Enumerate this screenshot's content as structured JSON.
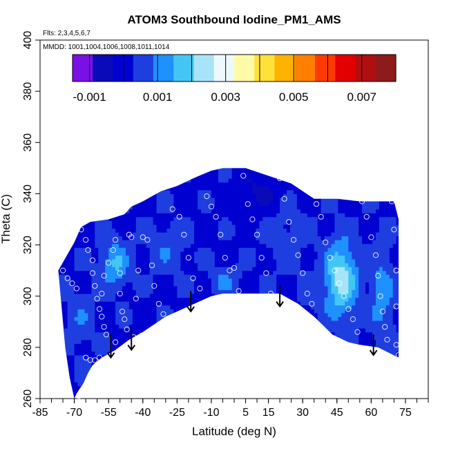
{
  "chart_data": {
    "type": "heatmap",
    "title": "ATOM3 Southbound Iodine_PM1_AMS",
    "flights_note": "Flts: 2,3,4,5,6,7",
    "dates_note": "MMDD: 1001,1004,1006,1008,1011,1014",
    "xlabel": "Latitude (deg N)",
    "ylabel": "Theta (C)",
    "xlim": [
      -85,
      85
    ],
    "ylim": [
      260,
      400
    ],
    "x_tick_labels": [
      "-85",
      "-70",
      "-55",
      "-40",
      "-25",
      "-10",
      "5",
      "15",
      "30",
      "45",
      "60",
      "75"
    ],
    "x_tick_values": [
      -85,
      -70,
      -55,
      -40,
      -25,
      -10,
      5,
      15,
      30,
      45,
      60,
      75
    ],
    "x_minor_step": 5,
    "y_ticks": [
      260,
      280,
      300,
      320,
      340,
      360,
      380,
      400
    ],
    "y_tick_labels": [
      "260",
      "280",
      "300",
      "320",
      "340",
      "360",
      "380",
      "400"
    ],
    "colorbar": {
      "range": [
        -0.0015,
        0.008
      ],
      "bounds": [
        -0.0015,
        -0.001,
        0.0,
        0.001,
        0.002,
        0.003,
        0.004,
        0.005,
        0.006,
        0.007,
        0.008
      ],
      "tick_labels": [
        "-0.001",
        "0.001",
        "0.003",
        "0.005",
        "0.007"
      ],
      "tick_values": [
        -0.001,
        0.001,
        0.003,
        0.005,
        0.007
      ],
      "colors": [
        "#7a10e6",
        "#0a0ab8",
        "#0000d0",
        "#1f3ee0",
        "#1e90ff",
        "#44c6f4",
        "#a8e4f8",
        "#eef8ff",
        "#fffaa8",
        "#ffe13a",
        "#ffb300",
        "#ff7f00",
        "#ff3a00",
        "#e30000",
        "#b00f0f",
        "#8e1b1b"
      ]
    },
    "field": {
      "boundary": [
        [
          -77,
          310
        ],
        [
          -70,
          321
        ],
        [
          -67,
          327
        ],
        [
          -63,
          329
        ],
        [
          -55,
          330
        ],
        [
          -48,
          332
        ],
        [
          -45,
          335
        ],
        [
          -40,
          337
        ],
        [
          -32,
          341
        ],
        [
          -25,
          343
        ],
        [
          -18,
          346
        ],
        [
          -10,
          349
        ],
        [
          -5,
          350
        ],
        [
          5,
          350
        ],
        [
          15,
          347
        ],
        [
          25,
          344
        ],
        [
          30,
          341
        ],
        [
          35,
          338
        ],
        [
          45,
          338
        ],
        [
          55,
          337
        ],
        [
          65,
          337
        ],
        [
          70,
          337
        ],
        [
          72,
          330
        ],
        [
          72,
          276
        ],
        [
          63,
          280
        ],
        [
          55,
          281
        ],
        [
          50,
          282
        ],
        [
          43,
          285
        ],
        [
          35,
          292
        ],
        [
          28,
          297
        ],
        [
          20,
          301
        ],
        [
          15,
          301
        ],
        [
          5,
          301
        ],
        [
          -5,
          301
        ],
        [
          -10,
          300
        ],
        [
          -20,
          296
        ],
        [
          -30,
          292
        ],
        [
          -40,
          286
        ],
        [
          -46,
          283
        ],
        [
          -52,
          279
        ],
        [
          -58,
          276
        ],
        [
          -62,
          273
        ],
        [
          -64,
          270
        ],
        [
          -66,
          266
        ],
        [
          -69,
          262
        ],
        [
          -70,
          260
        ],
        [
          -72,
          268
        ],
        [
          -74,
          280
        ],
        [
          -75,
          290
        ],
        [
          -76,
          300
        ]
      ],
      "hotspots": [
        {
          "lat": 46,
          "theta": 306,
          "value": 0.0024,
          "spread_lat": 7,
          "spread_theta": 14
        },
        {
          "lat": -53,
          "theta": 312,
          "value": 0.0015,
          "spread_lat": 6,
          "spread_theta": 9
        },
        {
          "lat": -30,
          "theta": 318,
          "value": 0.0008,
          "spread_lat": 8,
          "spread_theta": 9
        },
        {
          "lat": -5,
          "theta": 305,
          "value": 0.001,
          "spread_lat": 6,
          "spread_theta": 5
        },
        {
          "lat": 22,
          "theta": 322,
          "value": 0.0006,
          "spread_lat": 9,
          "spread_theta": 12
        },
        {
          "lat": 64,
          "theta": 300,
          "value": 0.0012,
          "spread_lat": 5,
          "spread_theta": 18
        },
        {
          "lat": -68,
          "theta": 290,
          "value": 0.0008,
          "spread_lat": 5,
          "spread_theta": 12
        },
        {
          "lat": 10,
          "theta": 340,
          "value": -0.0004,
          "spread_lat": 10,
          "spread_theta": 8
        },
        {
          "lat": 33,
          "theta": 300,
          "value": 0.0006,
          "spread_lat": 5,
          "spread_theta": 6
        }
      ],
      "background_value": 0.0002
    },
    "samples": [
      [
        -75,
        310
      ],
      [
        -73,
        307
      ],
      [
        -71,
        305
      ],
      [
        -69,
        303
      ],
      [
        -67,
        326
      ],
      [
        -65,
        322
      ],
      [
        -64,
        318
      ],
      [
        -62,
        314
      ],
      [
        -62,
        309
      ],
      [
        -61,
        304
      ],
      [
        -60,
        299
      ],
      [
        -59,
        295
      ],
      [
        -58,
        292
      ],
      [
        -57,
        288
      ],
      [
        -56,
        285
      ],
      [
        -65,
        276
      ],
      [
        -63,
        275
      ],
      [
        -61,
        275
      ],
      [
        -58,
        301
      ],
      [
        -57,
        308
      ],
      [
        -55,
        313
      ],
      [
        -53,
        318
      ],
      [
        -52,
        322
      ],
      [
        -50,
        309
      ],
      [
        -50,
        301
      ],
      [
        -49,
        294
      ],
      [
        -48,
        291
      ],
      [
        -47,
        287
      ],
      [
        -46,
        324
      ],
      [
        -45,
        323
      ],
      [
        -43,
        299
      ],
      [
        -42,
        310
      ],
      [
        -40,
        323
      ],
      [
        -38,
        322
      ],
      [
        -36,
        312
      ],
      [
        -35,
        304
      ],
      [
        -33,
        297
      ],
      [
        -31,
        293
      ],
      [
        -27,
        334
      ],
      [
        -24,
        331
      ],
      [
        -22,
        324
      ],
      [
        -20,
        315
      ],
      [
        -18,
        307
      ],
      [
        -15,
        303
      ],
      [
        -12,
        339
      ],
      [
        -10,
        335
      ],
      [
        -8,
        331
      ],
      [
        -6,
        324
      ],
      [
        -4,
        315
      ],
      [
        -2,
        310
      ],
      [
        0,
        311
      ],
      [
        2,
        302
      ],
      [
        4,
        347
      ],
      [
        6,
        336
      ],
      [
        8,
        330
      ],
      [
        10,
        324
      ],
      [
        12,
        315
      ],
      [
        14,
        309
      ],
      [
        16,
        301
      ],
      [
        18,
        296
      ],
      [
        20,
        346
      ],
      [
        22,
        338
      ],
      [
        24,
        329
      ],
      [
        26,
        322
      ],
      [
        28,
        316
      ],
      [
        30,
        309
      ],
      [
        32,
        301
      ],
      [
        34,
        297
      ],
      [
        36,
        336
      ],
      [
        38,
        331
      ],
      [
        40,
        321
      ],
      [
        42,
        315
      ],
      [
        44,
        310
      ],
      [
        46,
        305
      ],
      [
        48,
        300
      ],
      [
        50,
        295
      ],
      [
        52,
        291
      ],
      [
        54,
        286
      ],
      [
        56,
        337
      ],
      [
        58,
        331
      ],
      [
        60,
        323
      ],
      [
        62,
        316
      ],
      [
        63,
        308
      ],
      [
        64,
        300
      ],
      [
        65,
        294
      ],
      [
        66,
        288
      ],
      [
        67,
        283
      ],
      [
        69,
        337
      ],
      [
        70,
        326
      ],
      [
        71,
        310
      ],
      [
        71,
        296
      ],
      [
        71,
        281
      ],
      [
        72,
        277
      ],
      [
        -44,
        284
      ],
      [
        -47,
        278
      ],
      [
        -52,
        282
      ],
      [
        -59,
        276
      ],
      [
        -64,
        267
      ],
      [
        -68,
        261
      ],
      [
        -66,
        262
      ]
    ],
    "arrows": [
      {
        "lat": -54,
        "theta_top": 285,
        "theta_tip": 276
      },
      {
        "lat": -45,
        "theta_top": 288,
        "theta_tip": 279
      },
      {
        "lat": -19,
        "theta_top": 302,
        "theta_tip": 294
      },
      {
        "lat": 20,
        "theta_top": 304,
        "theta_tip": 296
      },
      {
        "lat": 61,
        "theta_top": 285,
        "theta_tip": 277
      }
    ]
  }
}
